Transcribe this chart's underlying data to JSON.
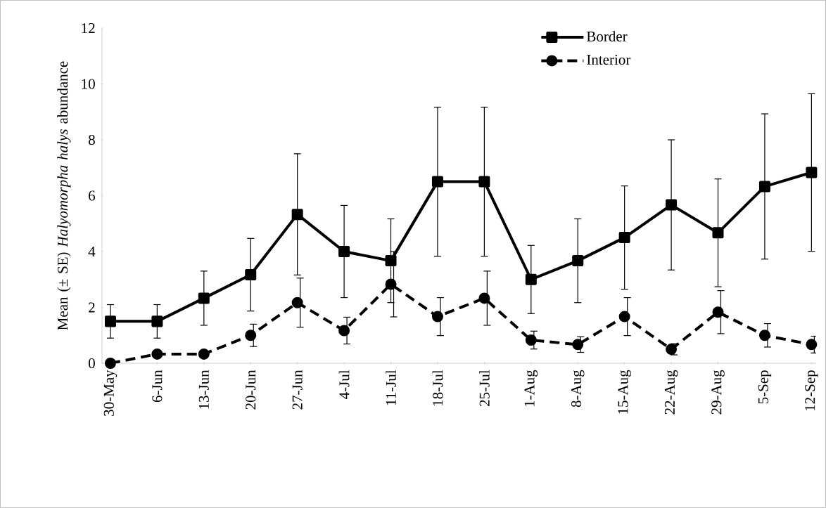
{
  "chart_data": {
    "type": "line",
    "ylabel": "Mean (± SE) *Halyomorpha halys* abundance",
    "categories": [
      "30-May",
      "6-Jun",
      "13-Jun",
      "20-Jun",
      "27-Jun",
      "4-Jul",
      "11-Jul",
      "18-Jul",
      "25-Jul",
      "1-Aug",
      "8-Aug",
      "15-Aug",
      "22-Aug",
      "29-Aug",
      "5-Sep",
      "12-Sep"
    ],
    "series": [
      {
        "name": "Border",
        "color": "#000000",
        "marker": "square",
        "line_style": "solid",
        "values": [
          1.5,
          1.5,
          2.33,
          3.17,
          5.33,
          4.0,
          3.67,
          6.5,
          6.5,
          3.0,
          3.67,
          4.5,
          5.67,
          4.67,
          6.33,
          6.83
        ],
        "errors": [
          0.6,
          0.6,
          0.97,
          1.3,
          2.17,
          1.65,
          1.5,
          2.67,
          2.67,
          1.22,
          1.5,
          1.85,
          2.33,
          1.93,
          2.6,
          2.82
        ]
      },
      {
        "name": "Interior",
        "color": "#000000",
        "marker": "circle",
        "line_style": "dashed",
        "values": [
          0,
          0.33,
          0.33,
          1.0,
          2.17,
          1.17,
          2.83,
          1.67,
          2.33,
          0.83,
          0.67,
          1.67,
          0.5,
          1.83,
          1.0,
          0.67
        ],
        "errors": [
          null,
          null,
          null,
          0.4,
          0.88,
          0.48,
          1.17,
          0.68,
          0.97,
          0.32,
          0.28,
          0.68,
          0.2,
          0.77,
          0.42,
          0.3
        ]
      }
    ],
    "ylim": [
      0,
      12
    ],
    "yticks": [
      0,
      2,
      4,
      6,
      8,
      10,
      12
    ],
    "grid": false,
    "legend": "top right"
  }
}
